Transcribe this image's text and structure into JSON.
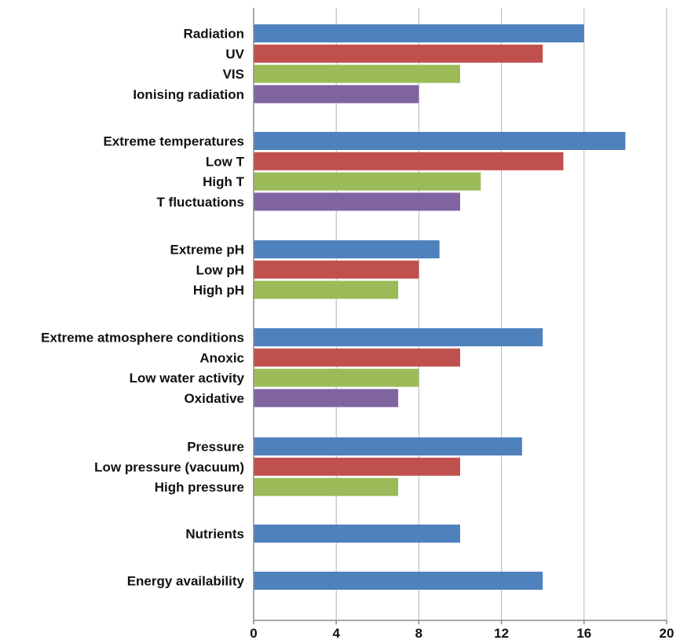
{
  "chart_data": {
    "type": "bar",
    "orientation": "horizontal",
    "xlim": [
      0,
      20
    ],
    "xticks": [
      0,
      4,
      8,
      12,
      16,
      20
    ],
    "grid": true,
    "legend": "none",
    "colors": {
      "level1": "#4F81BD",
      "level2": "#C0504D",
      "level3": "#9BBB59",
      "level4": "#8064A2"
    },
    "groups": [
      {
        "bars": [
          {
            "label": "Radiation",
            "value": 16,
            "level": 1
          },
          {
            "label": "UV",
            "value": 14,
            "level": 2
          },
          {
            "label": "VIS",
            "value": 10,
            "level": 3
          },
          {
            "label": "Ionising radiation",
            "value": 8,
            "level": 4
          }
        ]
      },
      {
        "bars": [
          {
            "label": "Extreme temperatures",
            "value": 18,
            "level": 1
          },
          {
            "label": "Low T",
            "value": 15,
            "level": 2
          },
          {
            "label": "High T",
            "value": 11,
            "level": 3
          },
          {
            "label": "T fluctuations",
            "value": 10,
            "level": 4
          }
        ]
      },
      {
        "bars": [
          {
            "label": "Extreme pH",
            "value": 9,
            "level": 1
          },
          {
            "label": "Low pH",
            "value": 8,
            "level": 2
          },
          {
            "label": "High pH",
            "value": 7,
            "level": 3
          }
        ]
      },
      {
        "bars": [
          {
            "label": "Extreme atmosphere conditions",
            "value": 14,
            "level": 1
          },
          {
            "label": "Anoxic",
            "value": 10,
            "level": 2
          },
          {
            "label": "Low water activity",
            "value": 8,
            "level": 3
          },
          {
            "label": "Oxidative",
            "value": 7,
            "level": 4
          }
        ]
      },
      {
        "bars": [
          {
            "label": "Pressure",
            "value": 13,
            "level": 1
          },
          {
            "label": "Low pressure (vacuum)",
            "value": 10,
            "level": 2
          },
          {
            "label": "High pressure",
            "value": 7,
            "level": 3
          }
        ]
      },
      {
        "bars": [
          {
            "label": "Nutrients",
            "value": 10,
            "level": 1
          }
        ]
      },
      {
        "bars": [
          {
            "label": "Energy availability",
            "value": 14,
            "level": 1
          }
        ]
      }
    ]
  }
}
